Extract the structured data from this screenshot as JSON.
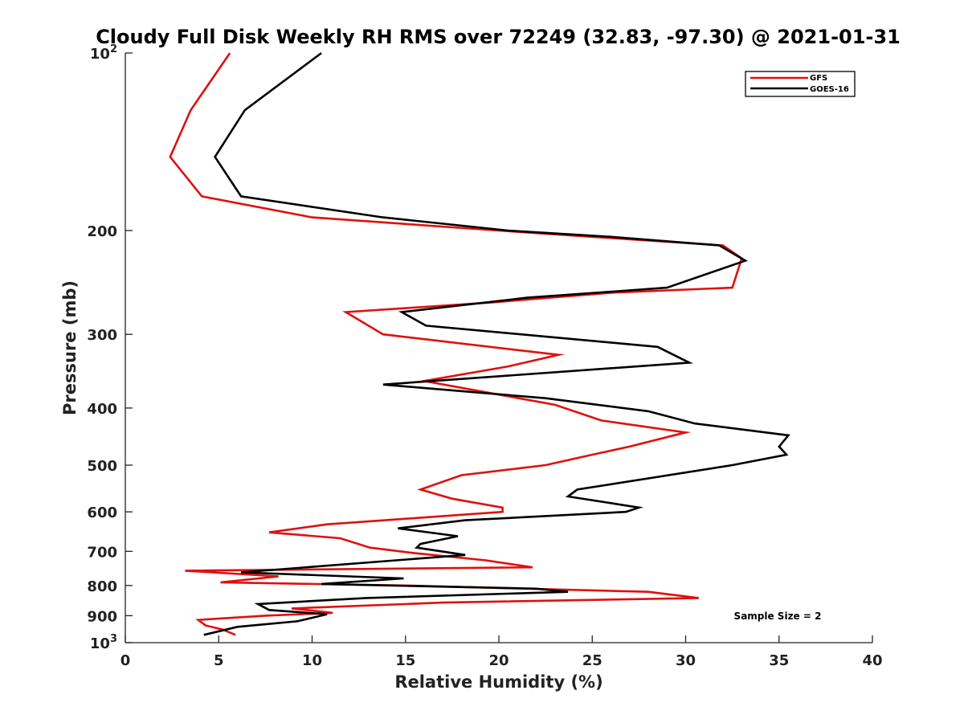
{
  "chart_data": {
    "type": "line",
    "title": "Cloudy Full Disk Weekly RH RMS over 72249 (32.83, -97.30) @ 2021-01-31",
    "xlabel": "Relative Humidity (%)",
    "ylabel": "Pressure (mb)",
    "xlim": [
      0,
      40
    ],
    "ylim": [
      100,
      1000
    ],
    "y_scale": "log",
    "y_reversed": true,
    "x_ticks": [
      "0",
      "5",
      "10",
      "15",
      "20",
      "25",
      "30",
      "35",
      "40"
    ],
    "y_ticks": [
      {
        "value": 100,
        "base": "10",
        "exp": "2"
      },
      {
        "value": 200,
        "label": "200"
      },
      {
        "value": 300,
        "label": "300"
      },
      {
        "value": 400,
        "label": "400"
      },
      {
        "value": 500,
        "label": "500"
      },
      {
        "value": 600,
        "label": "600"
      },
      {
        "value": 700,
        "label": "700"
      },
      {
        "value": 800,
        "label": "800"
      },
      {
        "value": 900,
        "label": "900"
      },
      {
        "value": 1000,
        "base": "10",
        "exp": "3"
      }
    ],
    "grid": false,
    "legend_position": "top-right",
    "annotation": "Sample Size = 2",
    "series": [
      {
        "name": "GFS",
        "color": "#e01010",
        "points": [
          [
            5.6,
            100
          ],
          [
            3.5,
            125
          ],
          [
            2.4,
            150
          ],
          [
            4.1,
            175
          ],
          [
            10.0,
            190
          ],
          [
            20.0,
            200
          ],
          [
            25.0,
            205
          ],
          [
            32.0,
            212
          ],
          [
            33.0,
            223
          ],
          [
            32.5,
            250
          ],
          [
            26.0,
            255
          ],
          [
            19.5,
            265
          ],
          [
            11.8,
            275
          ],
          [
            13.8,
            300
          ],
          [
            23.2,
            325
          ],
          [
            20.5,
            340
          ],
          [
            16.0,
            360
          ],
          [
            23.0,
            395
          ],
          [
            25.5,
            420
          ],
          [
            30.0,
            440
          ],
          [
            27.0,
            465
          ],
          [
            25.0,
            480
          ],
          [
            22.5,
            500
          ],
          [
            18.0,
            520
          ],
          [
            15.8,
            550
          ],
          [
            17.5,
            570
          ],
          [
            20.2,
            590
          ],
          [
            20.2,
            600
          ],
          [
            10.8,
            630
          ],
          [
            7.7,
            650
          ],
          [
            11.5,
            665
          ],
          [
            13.1,
            690
          ],
          [
            15.5,
            705
          ],
          [
            19.3,
            725
          ],
          [
            21.8,
            745
          ],
          [
            3.2,
            755
          ],
          [
            8.2,
            772
          ],
          [
            5.1,
            790
          ],
          [
            15.0,
            800
          ],
          [
            28.0,
            820
          ],
          [
            30.7,
            840
          ],
          [
            17.0,
            855
          ],
          [
            8.9,
            875
          ],
          [
            11.1,
            890
          ],
          [
            7.5,
            900
          ],
          [
            3.9,
            915
          ],
          [
            4.3,
            935
          ],
          [
            5.2,
            950
          ],
          [
            5.9,
            970
          ]
        ]
      },
      {
        "name": "GOES-16",
        "color": "#000000",
        "points": [
          [
            10.5,
            100
          ],
          [
            6.4,
            125
          ],
          [
            4.8,
            150
          ],
          [
            6.2,
            175
          ],
          [
            13.8,
            190
          ],
          [
            20.5,
            200
          ],
          [
            26.0,
            205
          ],
          [
            31.8,
            212
          ],
          [
            33.2,
            225
          ],
          [
            29.0,
            250
          ],
          [
            21.5,
            260
          ],
          [
            14.8,
            275
          ],
          [
            16.1,
            290
          ],
          [
            28.5,
            315
          ],
          [
            30.2,
            335
          ],
          [
            13.8,
            365
          ],
          [
            22.5,
            385
          ],
          [
            28.0,
            405
          ],
          [
            30.5,
            425
          ],
          [
            35.5,
            445
          ],
          [
            35.0,
            465
          ],
          [
            35.4,
            480
          ],
          [
            32.5,
            500
          ],
          [
            24.2,
            550
          ],
          [
            23.7,
            565
          ],
          [
            27.5,
            590
          ],
          [
            26.8,
            600
          ],
          [
            18.2,
            620
          ],
          [
            14.6,
            640
          ],
          [
            17.8,
            660
          ],
          [
            15.8,
            680
          ],
          [
            15.6,
            690
          ],
          [
            18.2,
            710
          ],
          [
            6.2,
            760
          ],
          [
            14.9,
            778
          ],
          [
            10.5,
            795
          ],
          [
            22.0,
            810
          ],
          [
            23.7,
            820
          ],
          [
            12.9,
            840
          ],
          [
            7.1,
            860
          ],
          [
            7.7,
            880
          ],
          [
            10.8,
            895
          ],
          [
            9.2,
            920
          ],
          [
            6.0,
            940
          ],
          [
            4.2,
            970
          ]
        ]
      }
    ]
  }
}
